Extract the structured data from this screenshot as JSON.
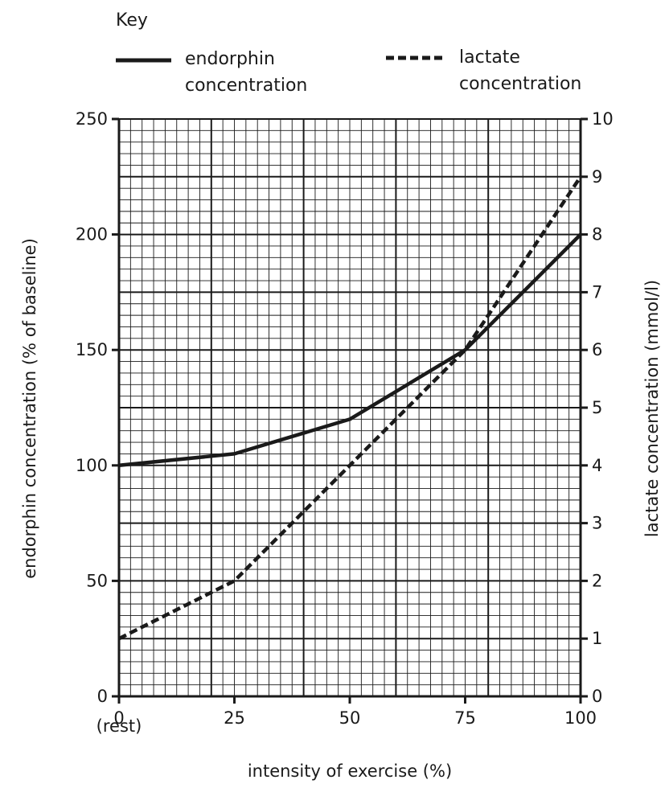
{
  "chart_data": {
    "type": "line",
    "key_title": "Key",
    "x": [
      0,
      25,
      50,
      75,
      100
    ],
    "xlabel": "intensity of exercise (%)",
    "xlim": [
      0,
      100
    ],
    "xticks": [
      "0",
      "25",
      "50",
      "75",
      "100"
    ],
    "xtick_note": "(rest)",
    "ylabel_left": "endorphin concentration (% of baseline)",
    "ylim_left": [
      0,
      250
    ],
    "yticks_left": [
      "0",
      "50",
      "100",
      "150",
      "200",
      "250"
    ],
    "ylabel_right": "lactate concentration (mmol/l)",
    "ylim_right": [
      0,
      10
    ],
    "yticks_right": [
      "0",
      "1",
      "2",
      "3",
      "4",
      "5",
      "6",
      "7",
      "8",
      "9",
      "10"
    ],
    "grid": true,
    "legend_position": "top",
    "series": [
      {
        "name_line1": "endorphin",
        "name_line2": "concentration",
        "axis": "left",
        "style": "solid",
        "color": "#1a1a1a",
        "values": [
          100,
          105,
          120,
          150,
          200
        ]
      },
      {
        "name_line1": "lactate",
        "name_line2": "concentration",
        "axis": "right",
        "style": "dashed",
        "color": "#1a1a1a",
        "values": [
          1,
          2,
          4,
          6,
          9
        ]
      }
    ]
  }
}
